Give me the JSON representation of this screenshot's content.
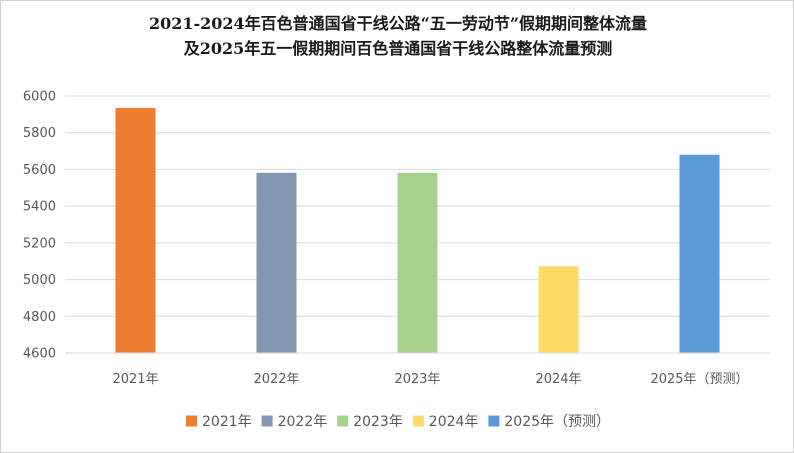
{
  "chart_data": {
    "type": "bar",
    "title_lines": [
      "2021-2024年百色普通国省干线公路“五一劳动节”假期期间整体流量",
      "及2025年五一假期期间百色普通国省干线公路整体流量预测"
    ],
    "categories": [
      "2021年",
      "2022年",
      "2023年",
      "2024年",
      "2025年（预测）"
    ],
    "values": [
      5935,
      5582,
      5582,
      5073,
      5680
    ],
    "colors": [
      "#ed7d31",
      "#8497b0",
      "#a9d18e",
      "#ffd966",
      "#5b9bd5"
    ],
    "ylim": [
      4600,
      6000
    ],
    "yticks": [
      4600,
      4800,
      5000,
      5200,
      5400,
      5600,
      5800,
      6000
    ],
    "grid": true,
    "legend_position": "bottom",
    "legend": [
      "2021年",
      "2022年",
      "2023年",
      "2024年",
      "2025年（预测）"
    ]
  }
}
